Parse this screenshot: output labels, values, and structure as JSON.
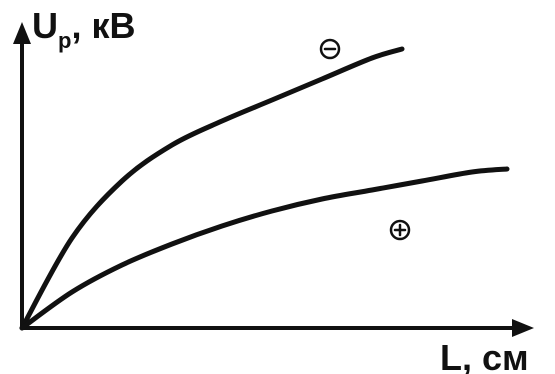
{
  "chart_data": {
    "type": "line",
    "title": "",
    "ylabel_main": "U",
    "ylabel_sub": "p",
    "ylabel_tail": ", кВ",
    "xlabel": "L, см",
    "xlim": [
      0,
      1
    ],
    "ylim": [
      0,
      1
    ],
    "grid": false,
    "series": [
      {
        "polarity": "−",
        "x": [
          0,
          0.1,
          0.2,
          0.3,
          0.4,
          0.5,
          0.6,
          0.7,
          0.76
        ],
        "y": [
          0,
          0.3,
          0.49,
          0.61,
          0.69,
          0.76,
          0.83,
          0.9,
          0.93
        ]
      },
      {
        "polarity": "+",
        "x": [
          0,
          0.1,
          0.2,
          0.3,
          0.4,
          0.5,
          0.6,
          0.7,
          0.8,
          0.9,
          0.97
        ],
        "y": [
          0,
          0.12,
          0.21,
          0.28,
          0.34,
          0.39,
          0.43,
          0.46,
          0.49,
          0.52,
          0.53
        ]
      }
    ]
  },
  "colors": {
    "ink": "#111111",
    "background": "#ffffff"
  }
}
